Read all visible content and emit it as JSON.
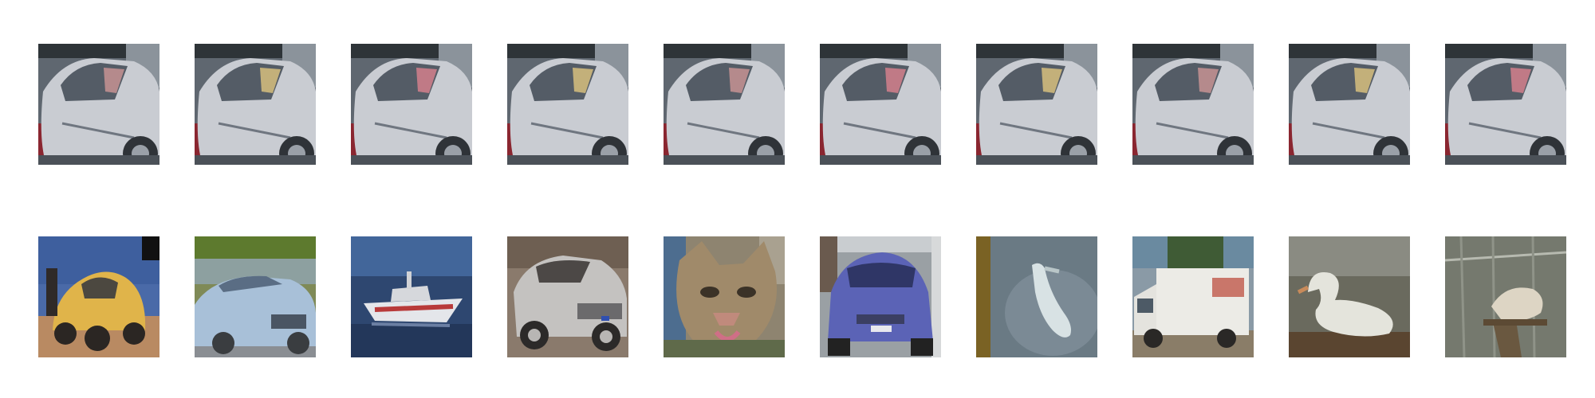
{
  "figure": {
    "rows": [
      {
        "row_kind": "query",
        "images": [
          {
            "subject": "silver-car-side"
          },
          {
            "subject": "silver-car-side"
          },
          {
            "subject": "silver-car-side"
          },
          {
            "subject": "silver-car-side"
          },
          {
            "subject": "silver-car-side"
          },
          {
            "subject": "silver-car-side"
          },
          {
            "subject": "silver-car-side"
          },
          {
            "subject": "silver-car-side"
          },
          {
            "subject": "silver-car-side"
          },
          {
            "subject": "silver-car-side"
          }
        ]
      },
      {
        "row_kind": "samples",
        "images": [
          {
            "subject": "yellow-beetle-car"
          },
          {
            "subject": "light-blue-convertible"
          },
          {
            "subject": "white-boat"
          },
          {
            "subject": "silver-suv"
          },
          {
            "subject": "lynx-cat-face"
          },
          {
            "subject": "blue-hatchback"
          },
          {
            "subject": "white-bird-in-water"
          },
          {
            "subject": "white-truck"
          },
          {
            "subject": "white-swan"
          },
          {
            "subject": "bird-in-cage"
          }
        ]
      }
    ]
  }
}
